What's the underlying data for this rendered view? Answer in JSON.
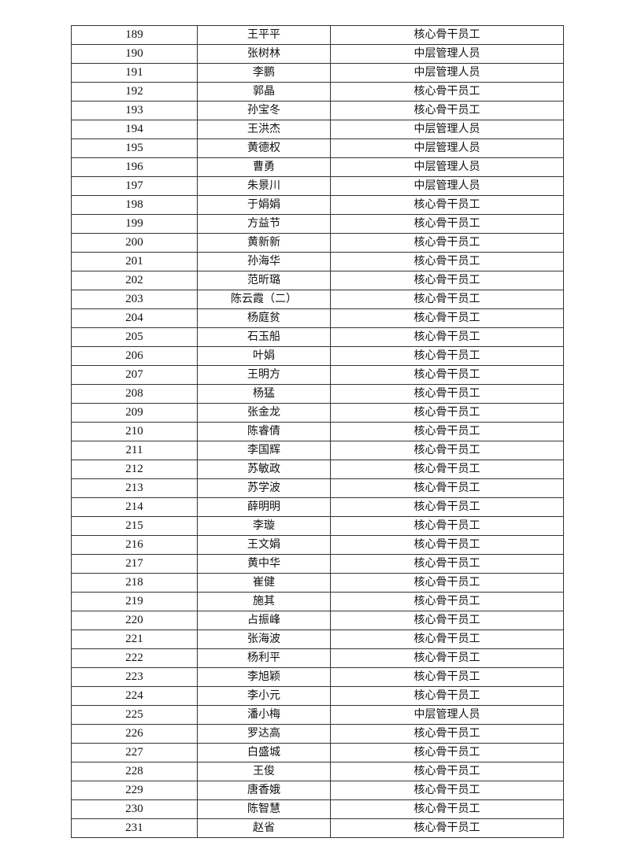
{
  "table": {
    "rows": [
      {
        "no": "189",
        "name": "王平平",
        "role": "核心骨干员工"
      },
      {
        "no": "190",
        "name": "张树林",
        "role": "中层管理人员"
      },
      {
        "no": "191",
        "name": "李鹏",
        "role": "中层管理人员"
      },
      {
        "no": "192",
        "name": "郭晶",
        "role": "核心骨干员工"
      },
      {
        "no": "193",
        "name": "孙宝冬",
        "role": "核心骨干员工"
      },
      {
        "no": "194",
        "name": "王洪杰",
        "role": "中层管理人员"
      },
      {
        "no": "195",
        "name": "黄德权",
        "role": "中层管理人员"
      },
      {
        "no": "196",
        "name": "曹勇",
        "role": "中层管理人员"
      },
      {
        "no": "197",
        "name": "朱景川",
        "role": "中层管理人员"
      },
      {
        "no": "198",
        "name": "于娟娟",
        "role": "核心骨干员工"
      },
      {
        "no": "199",
        "name": "方益节",
        "role": "核心骨干员工"
      },
      {
        "no": "200",
        "name": "黄新新",
        "role": "核心骨干员工"
      },
      {
        "no": "201",
        "name": "孙海华",
        "role": "核心骨干员工"
      },
      {
        "no": "202",
        "name": "范昕璐",
        "role": "核心骨干员工"
      },
      {
        "no": "203",
        "name": "陈云霞（二）",
        "role": "核心骨干员工"
      },
      {
        "no": "204",
        "name": "杨庭贫",
        "role": "核心骨干员工"
      },
      {
        "no": "205",
        "name": "石玉船",
        "role": "核心骨干员工"
      },
      {
        "no": "206",
        "name": "叶娟",
        "role": "核心骨干员工"
      },
      {
        "no": "207",
        "name": "王明方",
        "role": "核心骨干员工"
      },
      {
        "no": "208",
        "name": "杨猛",
        "role": "核心骨干员工"
      },
      {
        "no": "209",
        "name": "张金龙",
        "role": "核心骨干员工"
      },
      {
        "no": "210",
        "name": "陈睿倩",
        "role": "核心骨干员工"
      },
      {
        "no": "211",
        "name": "李国辉",
        "role": "核心骨干员工"
      },
      {
        "no": "212",
        "name": "苏敏政",
        "role": "核心骨干员工"
      },
      {
        "no": "213",
        "name": "苏学波",
        "role": "核心骨干员工"
      },
      {
        "no": "214",
        "name": "薛明明",
        "role": "核心骨干员工"
      },
      {
        "no": "215",
        "name": "李璇",
        "role": "核心骨干员工"
      },
      {
        "no": "216",
        "name": "王文娟",
        "role": "核心骨干员工"
      },
      {
        "no": "217",
        "name": "黄中华",
        "role": "核心骨干员工"
      },
      {
        "no": "218",
        "name": "崔健",
        "role": "核心骨干员工"
      },
      {
        "no": "219",
        "name": "施其",
        "role": "核心骨干员工"
      },
      {
        "no": "220",
        "name": "占振峰",
        "role": "核心骨干员工"
      },
      {
        "no": "221",
        "name": "张海波",
        "role": "核心骨干员工"
      },
      {
        "no": "222",
        "name": "杨利平",
        "role": "核心骨干员工"
      },
      {
        "no": "223",
        "name": "李旭颖",
        "role": "核心骨干员工"
      },
      {
        "no": "224",
        "name": "李小元",
        "role": "核心骨干员工"
      },
      {
        "no": "225",
        "name": "潘小梅",
        "role": "中层管理人员"
      },
      {
        "no": "226",
        "name": "罗达高",
        "role": "核心骨干员工"
      },
      {
        "no": "227",
        "name": "白盛城",
        "role": "核心骨干员工"
      },
      {
        "no": "228",
        "name": "王俊",
        "role": "核心骨干员工"
      },
      {
        "no": "229",
        "name": "唐香娥",
        "role": "核心骨干员工"
      },
      {
        "no": "230",
        "name": "陈智慧",
        "role": "核心骨干员工"
      },
      {
        "no": "231",
        "name": "赵省",
        "role": "核心骨干员工"
      }
    ]
  }
}
